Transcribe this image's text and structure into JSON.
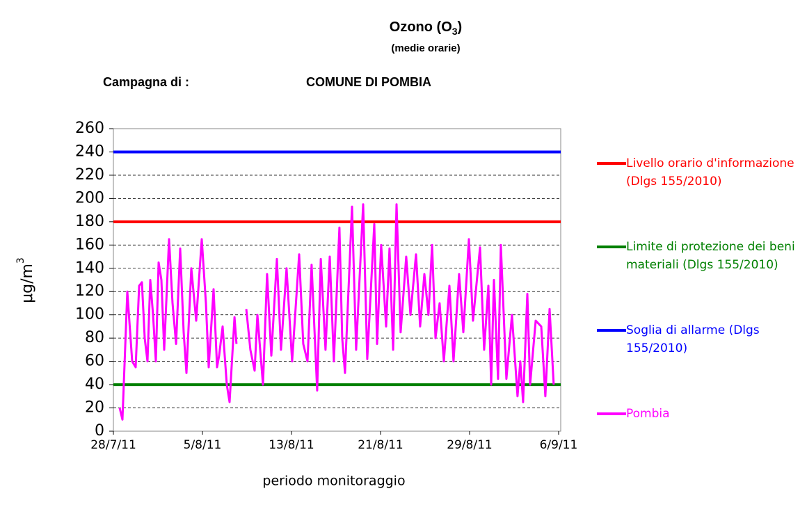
{
  "chart_data": {
    "type": "line",
    "title": "Ozono (O",
    "title_subscript": "3",
    "title_end": ")",
    "subtitle": "(medie orarie)",
    "campaign_label": "Campagna di :",
    "campaign_name": "COMUNE DI POMBIA",
    "x_label": "periodo monitoraggio",
    "y_label": "μg/m",
    "y_label_superscript": "3",
    "xlim": [
      0,
      40.19
    ],
    "xticks": [
      {
        "value": 0,
        "label": "28/7/11"
      },
      {
        "value": 8,
        "label": "5/8/11"
      },
      {
        "value": 16,
        "label": "13/8/11"
      },
      {
        "value": 24,
        "label": "21/8/11"
      },
      {
        "value": 32,
        "label": "29/8/11"
      },
      {
        "value": 40,
        "label": "6/9/11"
      }
    ],
    "ylim": [
      0,
      260
    ],
    "yticks": [
      0,
      20,
      40,
      60,
      80,
      100,
      120,
      140,
      160,
      180,
      200,
      220,
      240,
      260
    ],
    "grid": true,
    "thresholds": [
      {
        "name": "Livello orario d'informazione (Dlgs 155/2010)",
        "color": "#ff0000",
        "value": 180
      },
      {
        "name": "Limite di protezione dei beni materiali (Dlgs 155/2010)",
        "color": "#008000",
        "value": 40
      },
      {
        "name": "Soglia di allarme (Dlgs 155/2010)",
        "color": "#0000ff",
        "value": 240
      }
    ],
    "x": [
      0.56,
      0.81,
      1.25,
      1.69,
      2.0,
      2.31,
      2.56,
      2.81,
      3.06,
      3.31,
      3.56,
      3.81,
      4.06,
      4.31,
      4.56,
      5.0,
      5.31,
      5.63,
      6.0,
      6.31,
      6.56,
      7.0,
      7.44,
      7.94,
      8.31,
      8.56,
      9.0,
      9.31,
      9.5,
      9.81,
      10.19,
      10.44,
      10.88,
      11.06,
      11.5,
      11.94,
      12.31,
      12.69,
      12.94,
      13.44,
      13.81,
      14.19,
      14.69,
      15.06,
      15.56,
      16.06,
      16.69,
      17.06,
      17.44,
      17.81,
      18.31,
      18.63,
      19.06,
      19.44,
      19.81,
      20.31,
      20.56,
      20.81,
      21.44,
      21.81,
      22.44,
      22.81,
      23.44,
      23.69,
      24.06,
      24.5,
      24.81,
      25.13,
      25.44,
      25.81,
      26.31,
      26.69,
      27.19,
      27.56,
      27.94,
      28.31,
      28.63,
      28.94,
      29.31,
      29.69,
      30.19,
      30.56,
      31.06,
      31.44,
      31.94,
      32.31,
      32.94,
      33.31,
      33.69,
      33.94,
      34.19,
      34.56,
      34.81,
      35.31,
      35.81,
      36.31,
      36.56,
      36.81,
      37.19,
      37.44,
      37.94,
      38.44,
      38.81,
      39.19,
      39.56
    ],
    "series": [
      {
        "name": "Pombia",
        "color": "#ff00ff",
        "values": [
          20,
          10,
          120,
          60,
          55,
          125,
          128,
          80,
          60,
          130,
          100,
          60,
          145,
          130,
          70,
          165,
          110,
          75,
          157,
          85,
          50,
          140,
          95,
          165,
          110,
          55,
          122,
          55,
          65,
          90,
          40,
          25,
          98,
          75,
          null,
          105,
          70,
          52,
          100,
          40,
          135,
          65,
          148,
          70,
          140,
          60,
          152,
          75,
          60,
          143,
          35,
          148,
          70,
          150,
          60,
          175,
          80,
          50,
          193,
          70,
          195,
          62,
          178,
          75,
          160,
          90,
          157,
          70,
          195,
          85,
          150,
          100,
          152,
          90,
          135,
          100,
          160,
          80,
          110,
          60,
          125,
          60,
          135,
          85,
          165,
          95,
          158,
          70,
          125,
          40,
          130,
          45,
          160,
          45,
          100,
          30,
          60,
          25,
          118,
          40,
          95,
          90,
          30,
          105,
          40
        ]
      }
    ]
  }
}
